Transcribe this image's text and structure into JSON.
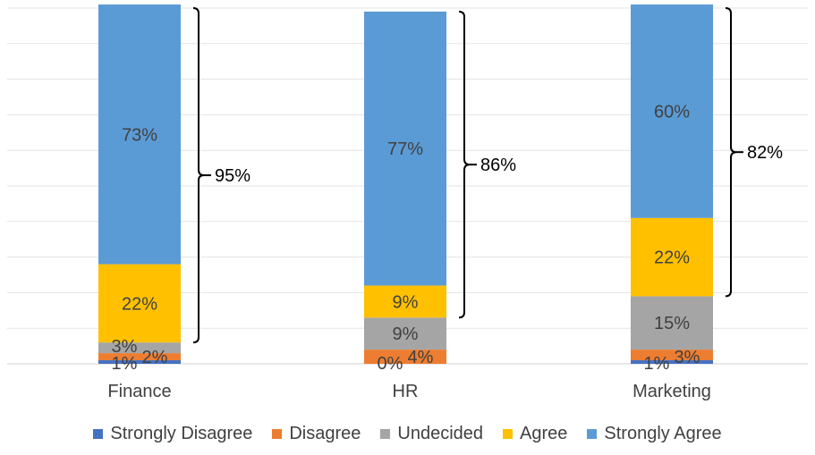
{
  "chart_data": {
    "type": "bar",
    "stacked": true,
    "categories": [
      "Finance",
      "HR",
      "Marketing"
    ],
    "ylim": [
      0,
      100
    ],
    "grid": true,
    "legend_position": "bottom",
    "series": [
      {
        "name": "Strongly Disagree",
        "color": "#4472C4",
        "values": [
          1,
          0,
          1
        ],
        "labels": [
          "1%",
          "0%",
          "1%"
        ]
      },
      {
        "name": "Disagree",
        "color": "#ED7D31",
        "values": [
          2,
          4,
          3
        ],
        "labels": [
          "2%",
          "4%",
          "3%"
        ]
      },
      {
        "name": "Undecided",
        "color": "#A5A5A5",
        "values": [
          3,
          9,
          15
        ],
        "labels": [
          "3%",
          "9%",
          "15%"
        ]
      },
      {
        "name": "Agree",
        "color": "#FFC000",
        "values": [
          22,
          9,
          22
        ],
        "labels": [
          "22%",
          "9%",
          "22%"
        ]
      },
      {
        "name": "Strongly Agree",
        "color": "#5B9BD5",
        "values": [
          73,
          77,
          60
        ],
        "labels": [
          "73%",
          "77%",
          "60%"
        ]
      }
    ],
    "bracket_totals": [
      "95%",
      "86%",
      "82%"
    ]
  }
}
